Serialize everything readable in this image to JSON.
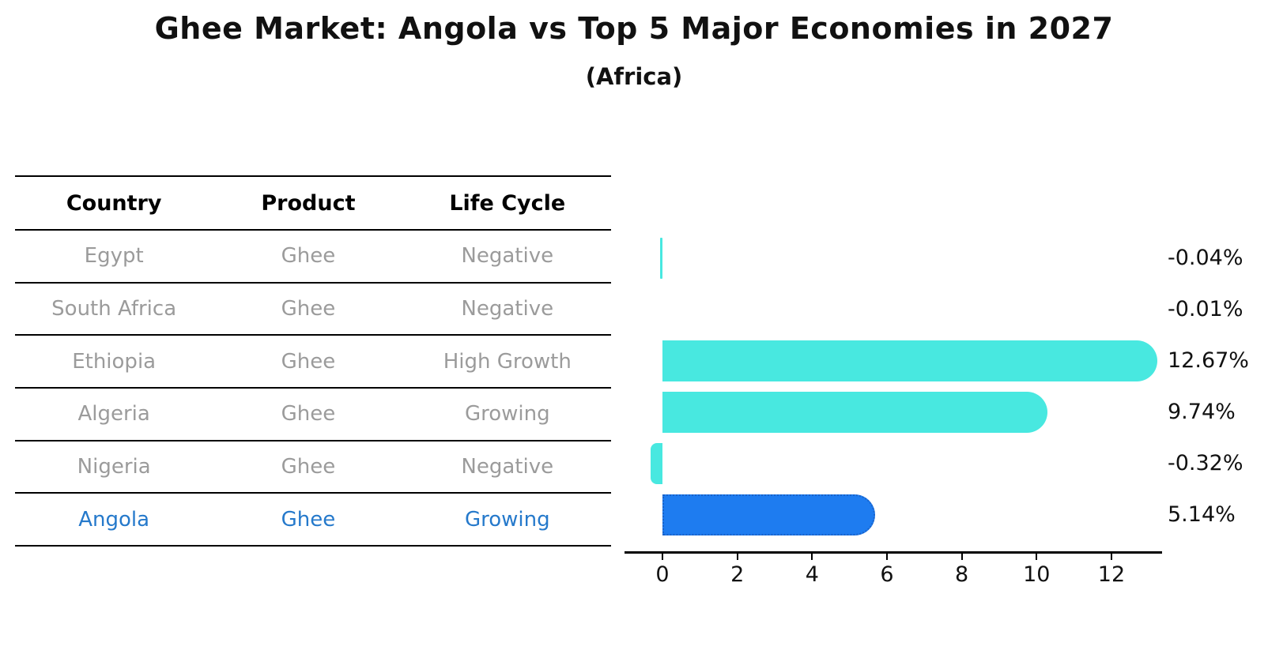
{
  "title": "Ghee Market: Angola vs Top 5 Major Economies in 2027",
  "subtitle": "(Africa)",
  "table": {
    "headers": [
      "Country",
      "Product",
      "Life Cycle"
    ],
    "rows": [
      {
        "country": "Egypt",
        "product": "Ghee",
        "life_cycle": "Negative",
        "highlight": false
      },
      {
        "country": "South Africa",
        "product": "Ghee",
        "life_cycle": "Negative",
        "highlight": false
      },
      {
        "country": "Ethiopia",
        "product": "Ghee",
        "life_cycle": "High Growth",
        "highlight": false
      },
      {
        "country": "Algeria",
        "product": "Ghee",
        "life_cycle": "Growing",
        "highlight": false
      },
      {
        "country": "Nigeria",
        "product": "Ghee",
        "life_cycle": "Negative",
        "highlight": true
      }
    ],
    "highlight_row": {
      "country": "Angola",
      "product": "Ghee",
      "life_cycle": "Growing"
    }
  },
  "chart_data": {
    "type": "bar",
    "orientation": "horizontal",
    "title": "Ghee Market: Angola vs Top 5 Major Economies in 2027",
    "subtitle": "(Africa)",
    "categories": [
      "Egypt",
      "South Africa",
      "Ethiopia",
      "Algeria",
      "Nigeria",
      "Angola"
    ],
    "values": [
      -0.04,
      -0.01,
      12.67,
      9.74,
      -0.32,
      5.14
    ],
    "value_labels": [
      "-0.04%",
      "-0.01%",
      "12.67%",
      "9.74%",
      "-0.32%",
      "5.14%"
    ],
    "unit": "percent",
    "xticks": [
      0,
      2,
      4,
      6,
      8,
      10,
      12
    ],
    "xlim": [
      -1.0,
      13.4
    ],
    "grid": false,
    "legend": "none",
    "highlight_category": "Angola",
    "colors": {
      "default_bar": "#48e8e0",
      "highlight_bar": "#1e7cf0",
      "highlight_border": "#1a62c8",
      "highlight_text": "#2579cb",
      "row_text": "#9b9b9b",
      "axis_text": "#111111"
    }
  }
}
